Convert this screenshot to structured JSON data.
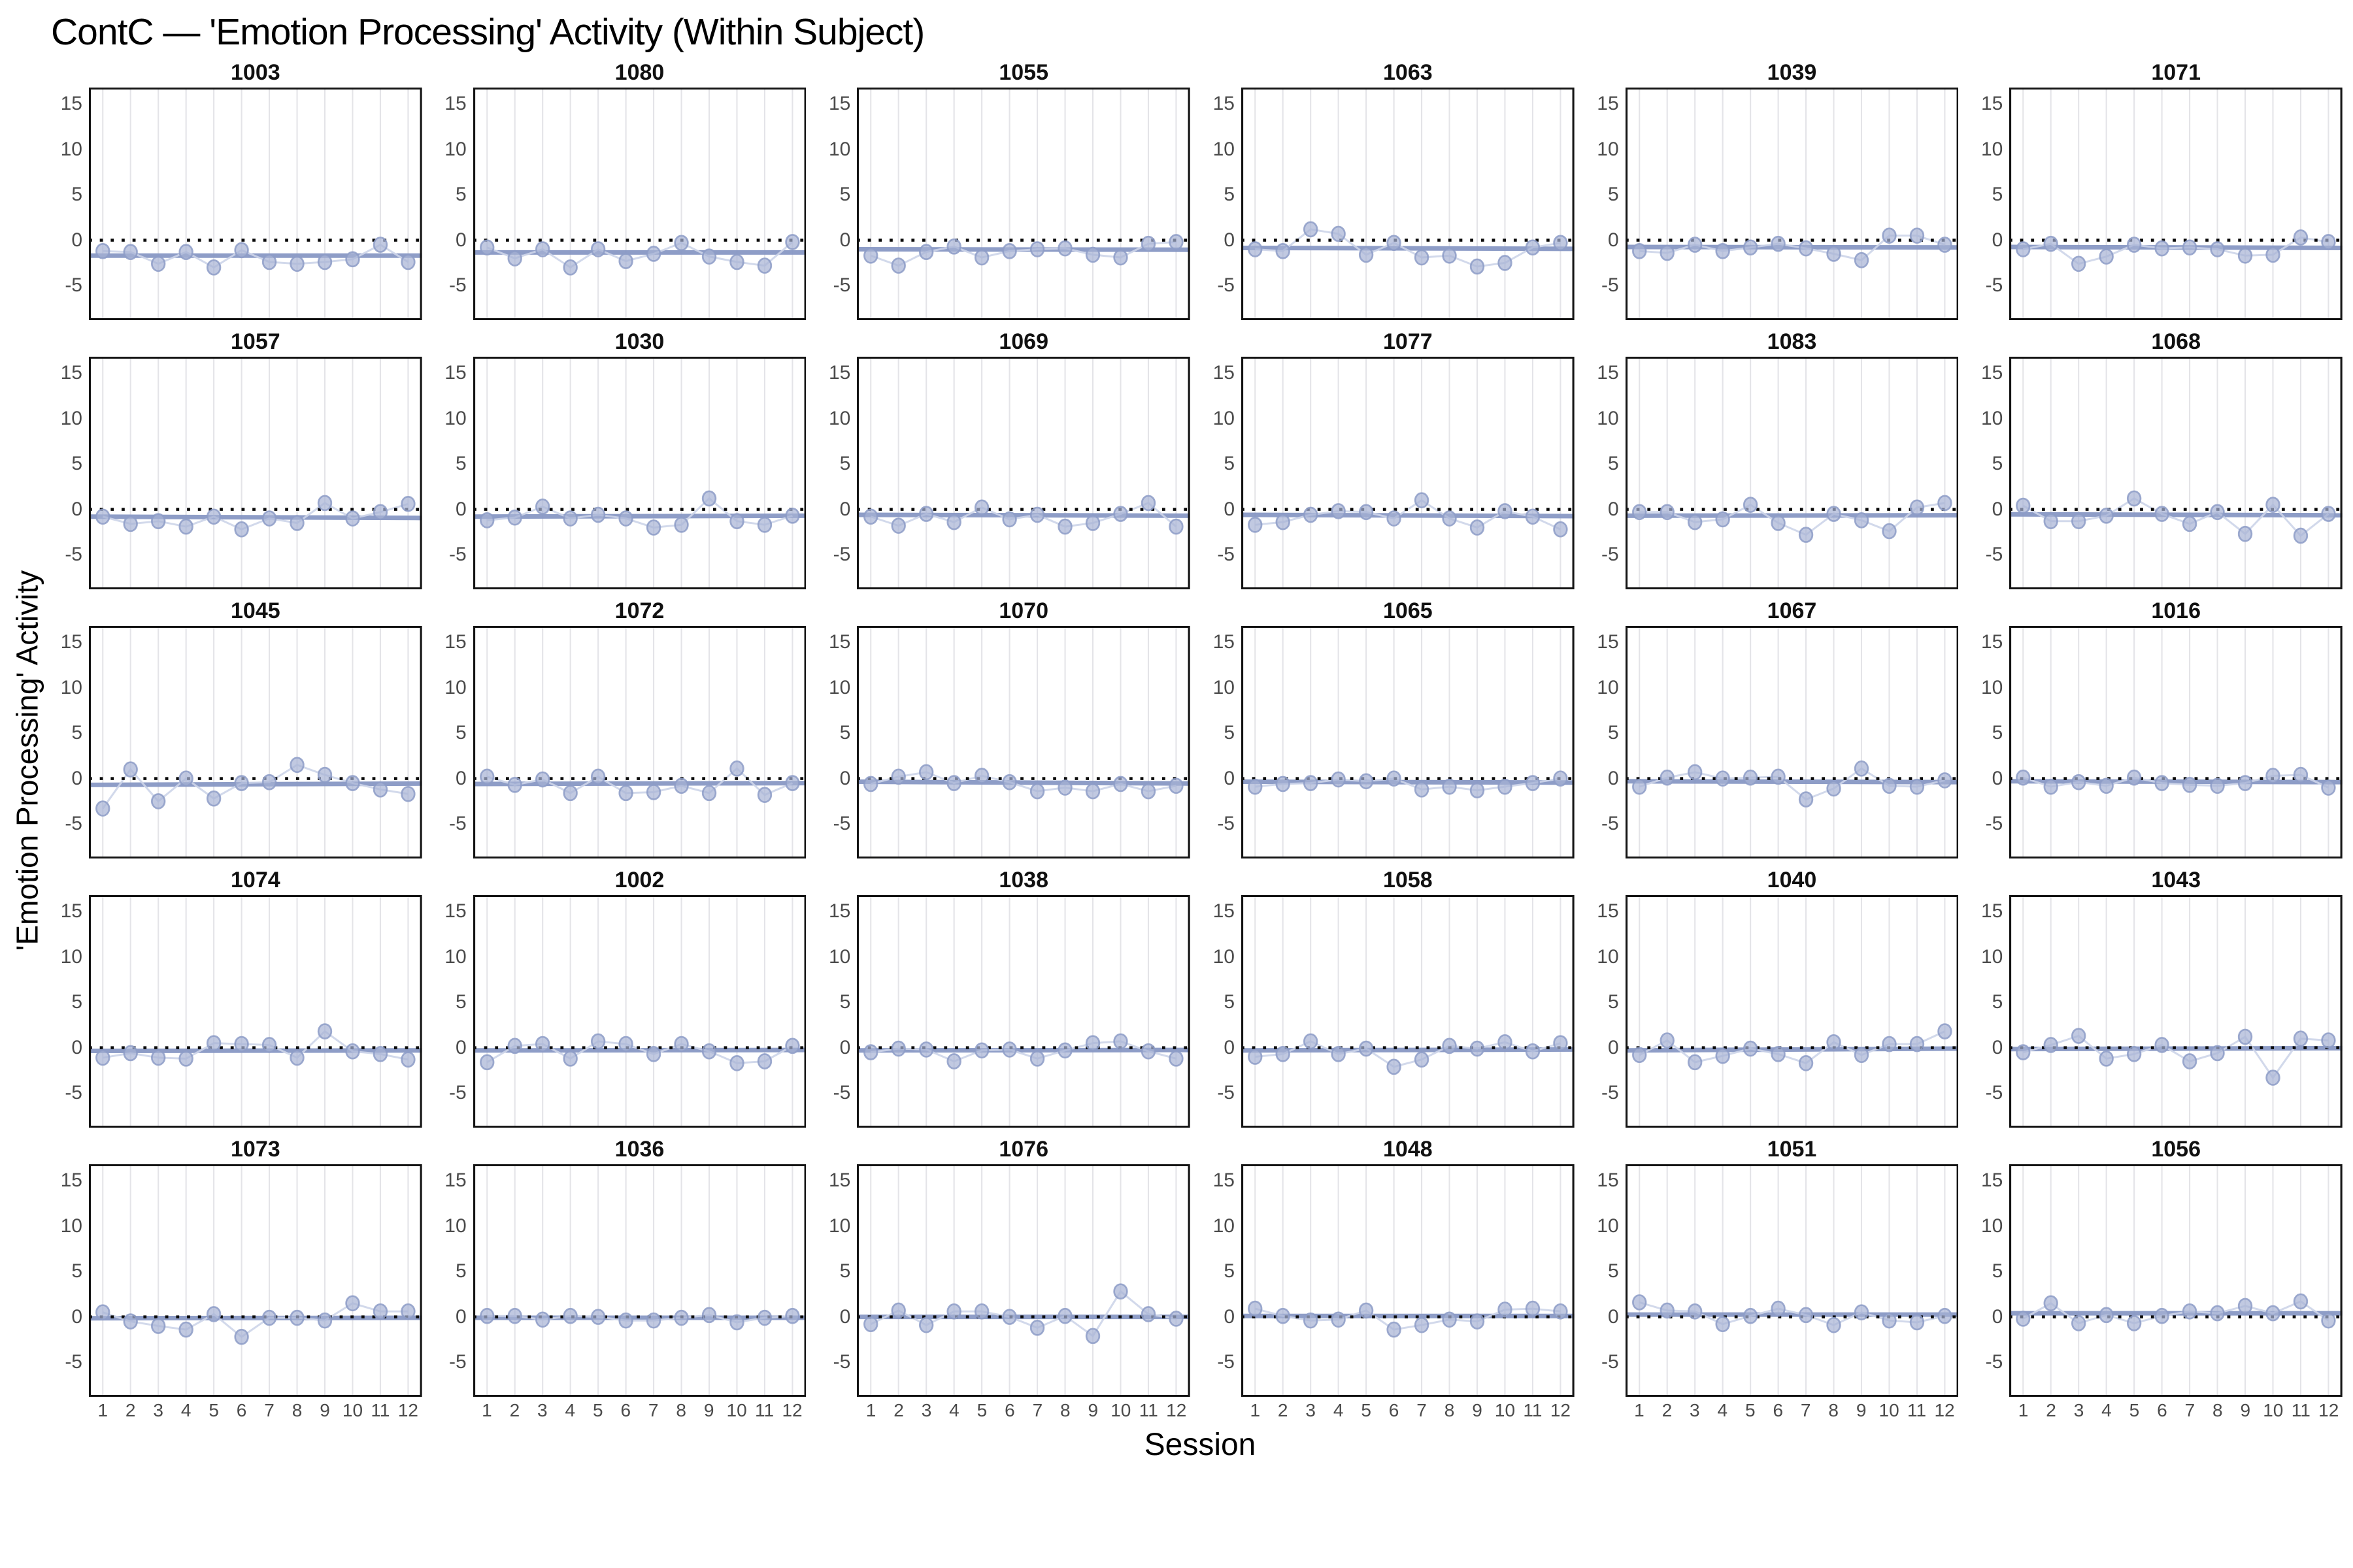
{
  "title": "ContC — 'Emotion Processing' Activity (Within Subject)",
  "ylabel": "'Emotion Processing' Activity",
  "xlabel": "Session",
  "chart_data": {
    "type": "scatter",
    "x": [
      1,
      2,
      3,
      4,
      5,
      6,
      7,
      8,
      9,
      10,
      11,
      12
    ],
    "xtick_labels": [
      "1",
      "2",
      "3",
      "4",
      "5",
      "6",
      "7",
      "8",
      "9",
      "10",
      "11",
      "12"
    ],
    "ytick_values": [
      15,
      10,
      5,
      0,
      -5
    ],
    "ytick_labels": [
      "15",
      "10",
      "5",
      "0",
      "-5"
    ],
    "ylim": [
      -8.8,
      16.8
    ],
    "grid": "vertical-gridlines-only",
    "legend": "none",
    "zero_line": {
      "y": 0,
      "style": "dotted",
      "color": "#0a0a0a"
    },
    "colors": {
      "point_fill": "#a7b2d4",
      "point_stroke": "#8d9cc7",
      "trend_line": "#8495c2",
      "connect_path": "#cdd5e9",
      "gridline": "#e4e4e8",
      "panel_border": "#141414",
      "tick_label": "#4b4b4b",
      "facet_title": "#111111"
    },
    "facets": [
      {
        "id": "1003",
        "values": [
          -1.2,
          -1.3,
          -2.6,
          -1.3,
          -3.0,
          -1.1,
          -2.4,
          -2.6,
          -2.4,
          -2.1,
          -0.5,
          -2.4
        ],
        "trend": [
          -1.7,
          -1.7
        ]
      },
      {
        "id": "1080",
        "values": [
          -0.8,
          -2.0,
          -1.0,
          -3.0,
          -1.0,
          -2.3,
          -1.5,
          -0.3,
          -1.8,
          -2.4,
          -2.8,
          -0.2
        ],
        "trend": [
          -1.35,
          -1.35
        ]
      },
      {
        "id": "1055",
        "values": [
          -1.7,
          -2.8,
          -1.3,
          -0.7,
          -1.9,
          -1.2,
          -1.0,
          -0.9,
          -1.6,
          -1.9,
          -0.4,
          -0.2
        ],
        "trend": [
          -1.0,
          -1.05
        ]
      },
      {
        "id": "1063",
        "values": [
          -1.0,
          -1.2,
          1.2,
          0.7,
          -1.6,
          -0.3,
          -1.9,
          -1.7,
          -2.9,
          -2.5,
          -0.8,
          -0.3
        ],
        "trend": [
          -0.85,
          -0.95
        ]
      },
      {
        "id": "1039",
        "values": [
          -1.2,
          -1.4,
          -0.5,
          -1.2,
          -0.8,
          -0.4,
          -0.9,
          -1.5,
          -2.2,
          0.5,
          0.5,
          -0.5
        ],
        "trend": [
          -0.75,
          -0.8
        ]
      },
      {
        "id": "1071",
        "values": [
          -1.0,
          -0.4,
          -2.6,
          -1.8,
          -0.5,
          -0.9,
          -0.8,
          -1.0,
          -1.7,
          -1.6,
          0.3,
          -0.2
        ],
        "trend": [
          -0.75,
          -0.85
        ]
      },
      {
        "id": "1057",
        "values": [
          -0.8,
          -1.6,
          -1.3,
          -1.9,
          -0.8,
          -2.2,
          -1.0,
          -1.5,
          0.7,
          -1.0,
          -0.3,
          0.6
        ],
        "trend": [
          -0.8,
          -0.95
        ]
      },
      {
        "id": "1030",
        "values": [
          -1.2,
          -0.9,
          0.3,
          -1.0,
          -0.6,
          -1.0,
          -2.0,
          -1.7,
          1.2,
          -1.3,
          -1.7,
          -0.7
        ],
        "trend": [
          -0.8,
          -0.7
        ]
      },
      {
        "id": "1069",
        "values": [
          -0.8,
          -1.8,
          -0.5,
          -1.4,
          0.2,
          -1.1,
          -0.6,
          -1.9,
          -1.5,
          -0.5,
          0.7,
          -1.9
        ],
        "trend": [
          -0.6,
          -0.7
        ]
      },
      {
        "id": "1077",
        "values": [
          -1.7,
          -1.4,
          -0.6,
          -0.2,
          -0.3,
          -1.0,
          1.0,
          -1.0,
          -2.0,
          -0.2,
          -0.8,
          -2.2
        ],
        "trend": [
          -0.6,
          -0.75
        ]
      },
      {
        "id": "1083",
        "values": [
          -0.3,
          -0.3,
          -1.4,
          -1.1,
          0.5,
          -1.5,
          -2.8,
          -0.5,
          -1.2,
          -2.4,
          0.2,
          0.7
        ],
        "trend": [
          -0.7,
          -0.65
        ]
      },
      {
        "id": "1068",
        "values": [
          0.4,
          -1.3,
          -1.3,
          -0.7,
          1.2,
          -0.5,
          -1.6,
          -0.3,
          -2.7,
          0.5,
          -2.9,
          -0.5
        ],
        "trend": [
          -0.55,
          -0.65
        ]
      },
      {
        "id": "1045",
        "values": [
          -3.3,
          1.0,
          -2.5,
          0.0,
          -2.2,
          -0.5,
          -0.4,
          1.5,
          0.4,
          -0.5,
          -1.2,
          -1.7
        ],
        "trend": [
          -0.7,
          -0.55
        ]
      },
      {
        "id": "1072",
        "values": [
          0.2,
          -0.7,
          -0.1,
          -1.6,
          0.2,
          -1.6,
          -1.5,
          -0.8,
          -1.6,
          1.1,
          -1.8,
          -0.5
        ],
        "trend": [
          -0.6,
          -0.5
        ]
      },
      {
        "id": "1070",
        "values": [
          -0.6,
          0.2,
          0.7,
          -0.5,
          0.3,
          -0.4,
          -1.4,
          -1.0,
          -1.4,
          -0.6,
          -1.4,
          -0.8
        ],
        "trend": [
          -0.35,
          -0.55
        ]
      },
      {
        "id": "1065",
        "values": [
          -0.9,
          -0.6,
          -0.5,
          -0.1,
          -0.3,
          0.0,
          -1.2,
          -0.9,
          -1.3,
          -0.9,
          -0.5,
          0.0
        ],
        "trend": [
          -0.35,
          -0.45
        ]
      },
      {
        "id": "1067",
        "values": [
          -0.9,
          0.1,
          0.7,
          0.0,
          0.1,
          0.2,
          -2.3,
          -1.1,
          1.1,
          -0.8,
          -0.9,
          -0.2
        ],
        "trend": [
          -0.3,
          -0.4
        ]
      },
      {
        "id": "1016",
        "values": [
          0.1,
          -0.9,
          -0.4,
          -0.8,
          0.1,
          -0.5,
          -0.7,
          -0.8,
          -0.5,
          0.3,
          0.4,
          -1.0
        ],
        "trend": [
          -0.3,
          -0.4
        ]
      },
      {
        "id": "1074",
        "values": [
          -1.1,
          -0.6,
          -1.1,
          -1.2,
          0.5,
          0.4,
          0.3,
          -1.1,
          1.8,
          -0.4,
          -0.7,
          -1.3
        ],
        "trend": [
          -0.35,
          -0.3
        ]
      },
      {
        "id": "1002",
        "values": [
          -1.6,
          0.2,
          0.4,
          -1.2,
          0.7,
          0.4,
          -0.7,
          0.4,
          -0.4,
          -1.7,
          -1.5,
          0.2
        ],
        "trend": [
          -0.3,
          -0.25
        ]
      },
      {
        "id": "1038",
        "values": [
          -0.5,
          -0.1,
          -0.2,
          -1.5,
          -0.3,
          -0.2,
          -1.2,
          -0.3,
          0.5,
          0.7,
          -0.4,
          -1.2
        ],
        "trend": [
          -0.3,
          -0.25
        ]
      },
      {
        "id": "1058",
        "values": [
          -1.0,
          -0.7,
          0.7,
          -0.7,
          -0.1,
          -2.1,
          -1.3,
          0.2,
          -0.1,
          0.6,
          -0.4,
          0.5
        ],
        "trend": [
          -0.3,
          -0.2
        ]
      },
      {
        "id": "1040",
        "values": [
          -0.8,
          0.8,
          -1.6,
          -0.9,
          -0.1,
          -0.7,
          -1.7,
          0.6,
          -0.8,
          0.4,
          0.4,
          1.8
        ],
        "trend": [
          -0.3,
          -0.1
        ]
      },
      {
        "id": "1043",
        "values": [
          -0.5,
          0.3,
          1.3,
          -1.2,
          -0.7,
          0.3,
          -1.5,
          -0.6,
          1.2,
          -3.3,
          1.0,
          0.8
        ],
        "trend": [
          -0.15,
          -0.05
        ]
      },
      {
        "id": "1073",
        "values": [
          0.5,
          -0.5,
          -1.0,
          -1.4,
          0.3,
          -2.2,
          -0.1,
          -0.1,
          -0.4,
          1.5,
          0.6,
          0.6
        ],
        "trend": [
          -0.15,
          -0.1
        ]
      },
      {
        "id": "1036",
        "values": [
          0.1,
          0.1,
          -0.3,
          0.1,
          0.0,
          -0.4,
          -0.4,
          -0.1,
          0.2,
          -0.6,
          -0.1,
          0.1
        ],
        "trend": [
          -0.1,
          -0.1
        ]
      },
      {
        "id": "1076",
        "values": [
          -0.8,
          0.7,
          -0.9,
          0.6,
          0.6,
          0.0,
          -1.2,
          0.1,
          -2.1,
          2.8,
          0.3,
          -0.2
        ],
        "trend": [
          0.0,
          0.0
        ]
      },
      {
        "id": "1048",
        "values": [
          0.9,
          0.1,
          -0.4,
          -0.3,
          0.7,
          -1.4,
          -0.9,
          -0.3,
          -0.5,
          0.8,
          0.9,
          0.6
        ],
        "trend": [
          0.1,
          0.1
        ]
      },
      {
        "id": "1051",
        "values": [
          1.6,
          0.7,
          0.6,
          -0.8,
          0.1,
          0.9,
          0.2,
          -0.9,
          0.5,
          -0.4,
          -0.6,
          0.1
        ],
        "trend": [
          0.25,
          0.25
        ]
      },
      {
        "id": "1056",
        "values": [
          -0.2,
          1.5,
          -0.7,
          0.2,
          -0.7,
          0.1,
          0.6,
          0.4,
          1.2,
          0.4,
          1.7,
          -0.4
        ],
        "trend": [
          0.4,
          0.4
        ]
      }
    ]
  }
}
